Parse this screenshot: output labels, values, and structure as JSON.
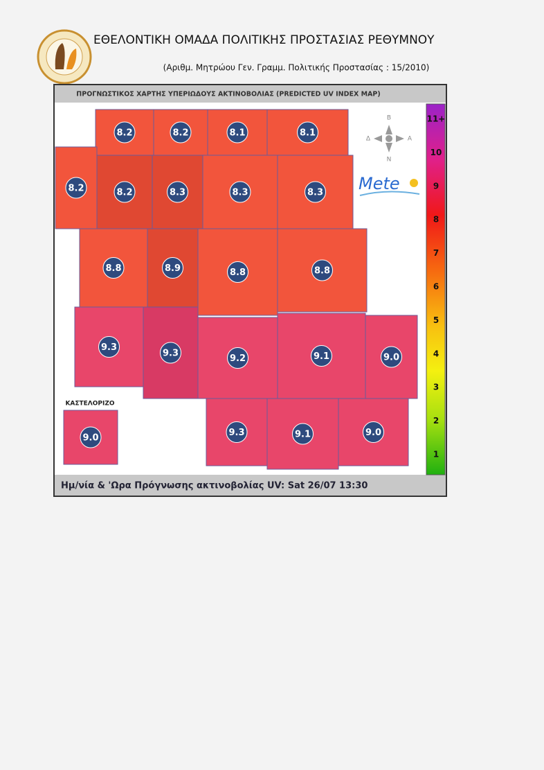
{
  "header": {
    "title": "ΕΘΕΛΟΝΤΙΚΗ ΟΜΑΔΑ ΠΟΛΙΤΙΚΗΣ ΠΡΟΣΤΑΣΙΑΣ ΡΕΘΥΜΝΟΥ",
    "subtitle": "(Αριθμ. Μητρώου Γεν. Γραμμ. Πολιτικής Προστασίας : 15/2010)"
  },
  "map": {
    "title": "ΠΡΟΓΝΩΣΤΙΚΟΣ ΧΑΡΤΗΣ ΥΠΕΡΙΩΔΟΥΣ ΑΚΤΙΝΟΒΟΛΙΑΣ (PREDICTED UV INDEX MAP)",
    "tiles": [
      "8.2",
      "8.2",
      "8.1",
      "8.1",
      "8.2",
      "8.2",
      "8.3",
      "8.3",
      "8.3",
      "8.8",
      "8.9",
      "8.8",
      "8.8",
      "9.3",
      "9.3",
      "9.2",
      "9.1",
      "9.0",
      "9.3",
      "9.1",
      "9.0",
      "9.0"
    ],
    "inset_label": "ΚΑΣΤΕΛΟΡΙΖΟ",
    "compass": [
      "Β",
      "Δ",
      "Α",
      "Ν"
    ],
    "logo": "Mete",
    "scale": [
      "11+",
      "10",
      "9",
      "8",
      "7",
      "6",
      "5",
      "4",
      "3",
      "2",
      "1"
    ],
    "footer": "Ημ/νία & 'Ωρα Πρόγνωσης ακτινοβολίας UV:  Sat 26/07 13:30"
  }
}
